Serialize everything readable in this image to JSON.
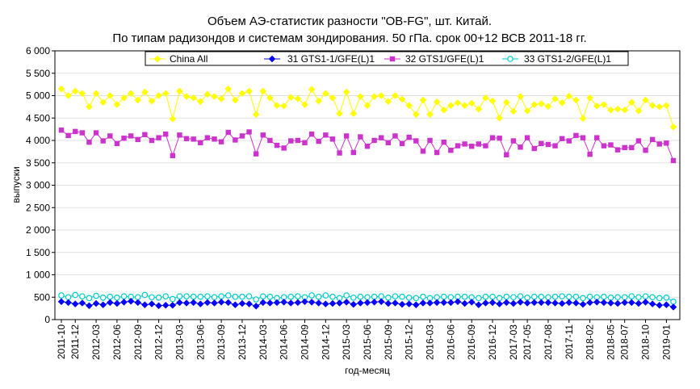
{
  "chart_data": {
    "type": "line",
    "title": "Объем АЭ-статистик разности \"OB-FG\", шт. Китай.",
    "subtitle": "По типам радизондов и системам зондирования. 50 гПа. срок 00+12 ВСВ 2011-18 гг.",
    "xlabel": "год-месяц",
    "ylabel": "выпуски",
    "ylim": [
      0,
      6000
    ],
    "y_ticks": [
      "0",
      "500",
      "1 000",
      "1 500",
      "2 000",
      "2 500",
      "3 000",
      "3 500",
      "4 000",
      "4 500",
      "5 000",
      "5 500",
      "6 000"
    ],
    "y_tick_values": [
      0,
      500,
      1000,
      1500,
      2000,
      2500,
      3000,
      3500,
      4000,
      4500,
      5000,
      5500,
      6000
    ],
    "x_tick_labels": [
      "2011-10",
      "2011-12",
      "2012-03",
      "2012-06",
      "2012-09",
      "2012-12",
      "2013-03",
      "2013-06",
      "2013-09",
      "2013-12",
      "2014-03",
      "2014-06",
      "2014-09",
      "2014-12",
      "2015-03",
      "2015-06",
      "2015-09",
      "2015-12",
      "2016-03",
      "2016-06",
      "2016-09",
      "2016-12",
      "2017-03",
      "2017-05",
      "2017-08",
      "2017-11",
      "2018-02",
      "2018-05",
      "2018-07",
      "2018-10",
      "2019-01"
    ],
    "x_tick_index": [
      0,
      2,
      5,
      8,
      11,
      14,
      17,
      20,
      23,
      26,
      29,
      32,
      35,
      38,
      41,
      44,
      47,
      50,
      53,
      56,
      59,
      62,
      65,
      67,
      70,
      73,
      76,
      79,
      81,
      84,
      87
    ],
    "n_points": 89,
    "grid": true,
    "legend_position": "top",
    "series": [
      {
        "name": "China All",
        "color": "#ffff00",
        "marker": "diamond",
        "values": [
          5150,
          5000,
          5100,
          5050,
          4750,
          5050,
          4850,
          5000,
          4800,
          4950,
          5050,
          4900,
          5080,
          4880,
          5000,
          5050,
          4480,
          5100,
          4980,
          4950,
          4870,
          5030,
          4980,
          4930,
          5150,
          4900,
          5050,
          5100,
          4580,
          5100,
          4950,
          4780,
          4770,
          4960,
          4930,
          4800,
          5140,
          4880,
          5050,
          4950,
          4600,
          5080,
          4600,
          4980,
          4780,
          4980,
          5000,
          4870,
          5000,
          4920,
          4780,
          4580,
          4900,
          4580,
          4860,
          4680,
          4780,
          4840,
          4780,
          4830,
          4700,
          4950,
          4880,
          4500,
          4850,
          4650,
          4980,
          4660,
          4800,
          4820,
          4760,
          4930,
          4840,
          4990,
          4900,
          4490,
          4950,
          4770,
          4800,
          4680,
          4700,
          4680,
          4850,
          4660,
          4900,
          4780,
          4750,
          4780,
          4300
        ]
      },
      {
        "name": "31 GTS1-1/GFE(L)1",
        "color": "#0000ff",
        "marker": "diamond",
        "values": [
          400,
          380,
          350,
          370,
          310,
          360,
          330,
          380,
          360,
          390,
          410,
          380,
          330,
          350,
          310,
          320,
          320,
          380,
          370,
          380,
          350,
          380,
          370,
          390,
          380,
          330,
          360,
          350,
          300,
          380,
          370,
          380,
          390,
          370,
          380,
          400,
          390,
          370,
          350,
          360,
          370,
          390,
          340,
          370,
          380,
          390,
          400,
          360,
          370,
          340,
          350,
          330,
          370,
          370,
          380,
          380,
          380,
          400,
          360,
          390,
          330,
          370,
          380,
          350,
          380,
          360,
          390,
          370,
          380,
          380,
          380,
          370,
          360,
          380,
          370,
          340,
          380,
          390,
          380,
          370,
          360,
          380,
          380,
          360,
          390,
          350,
          320,
          330,
          280
        ]
      },
      {
        "name": "32 GTS1/GFE(L)1",
        "color": "#cc33cc",
        "marker": "square",
        "values": [
          4230,
          4110,
          4200,
          4170,
          3960,
          4170,
          3990,
          4100,
          3930,
          4050,
          4100,
          4020,
          4130,
          4000,
          4060,
          4140,
          3660,
          4120,
          4040,
          4030,
          3950,
          4060,
          4030,
          3970,
          4180,
          4010,
          4100,
          4190,
          3700,
          4120,
          4000,
          3890,
          3830,
          3990,
          4000,
          3950,
          4140,
          3980,
          4120,
          4030,
          3720,
          4100,
          3730,
          4080,
          3870,
          4000,
          4060,
          3950,
          4100,
          3930,
          4070,
          3990,
          3760,
          4000,
          3730,
          3960,
          3780,
          3880,
          3920,
          3870,
          3920,
          3880,
          4060,
          4050,
          3680,
          3990,
          3850,
          4060,
          3820,
          3930,
          3910,
          3880,
          4040,
          3990,
          4110,
          4060,
          3690,
          4060,
          3880,
          3900,
          3790,
          3840,
          3840,
          3990,
          3780,
          4020,
          3920,
          3940,
          3550
        ]
      },
      {
        "name": "33 GTS1-2/GFE(L)1",
        "color": "#00cccc",
        "marker": "circle",
        "values": [
          540,
          500,
          550,
          520,
          480,
          530,
          490,
          510,
          490,
          520,
          510,
          500,
          550,
          500,
          490,
          520,
          460,
          520,
          520,
          510,
          510,
          520,
          500,
          520,
          540,
          510,
          510,
          520,
          450,
          520,
          510,
          480,
          500,
          510,
          520,
          500,
          540,
          510,
          540,
          510,
          480,
          540,
          490,
          510,
          500,
          510,
          520,
          490,
          520,
          510,
          490,
          480,
          510,
          480,
          500,
          510,
          500,
          510,
          510,
          500,
          480,
          510,
          510,
          480,
          510,
          500,
          520,
          490,
          510,
          510,
          500,
          510,
          520,
          510,
          510,
          480,
          510,
          500,
          510,
          490,
          500,
          500,
          520,
          500,
          520,
          500,
          480,
          490,
          400
        ]
      }
    ]
  }
}
